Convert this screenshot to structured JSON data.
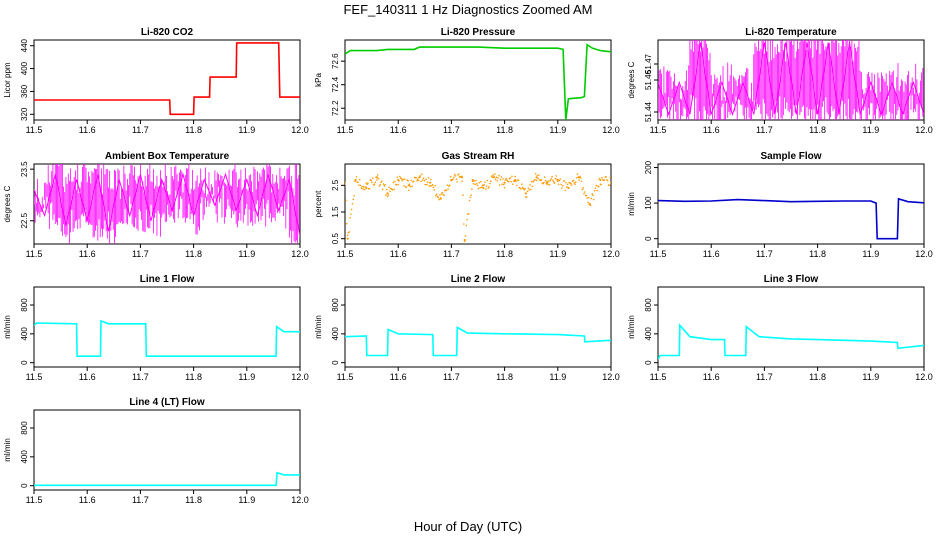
{
  "figure": {
    "title": "FEF_140311  1 Hz Diagnostics Zoomed AM",
    "xlabel": "Hour of Day (UTC)"
  },
  "chart_data": [
    {
      "type": "line",
      "title": "Li-820 CO2",
      "ylabel": "Licor ppm",
      "color": "#ff0000",
      "xlim": [
        11.5,
        12.0
      ],
      "ylim": [
        310,
        450
      ],
      "xticks": [
        "11.5",
        "11.6",
        "11.7",
        "11.8",
        "11.9",
        "12.0"
      ],
      "yticks": [
        "320",
        "360",
        "400",
        "440"
      ],
      "series": [
        {
          "x": [
            11.5,
            11.52,
            11.755,
            11.756,
            11.8,
            11.801,
            11.83,
            11.831,
            11.88,
            11.881,
            11.96,
            11.962,
            12.0
          ],
          "y": [
            345,
            345,
            345,
            320,
            320,
            350,
            350,
            385,
            385,
            445,
            445,
            350,
            350
          ]
        }
      ]
    },
    {
      "type": "line",
      "title": "Li-820 Pressure",
      "ylabel": "kPa",
      "color": "#00cc00",
      "xlim": [
        11.5,
        12.0
      ],
      "ylim": [
        72.1,
        72.78
      ],
      "xticks": [
        "11.5",
        "11.6",
        "11.7",
        "11.8",
        "11.9",
        "12.0"
      ],
      "yticks": [
        "72.2",
        "72.4",
        "72.6"
      ],
      "series": [
        {
          "x": [
            11.5,
            11.51,
            11.56,
            11.58,
            11.63,
            11.64,
            11.75,
            11.8,
            11.9,
            11.91,
            11.915,
            11.92,
            11.945,
            11.95,
            11.955,
            11.965,
            11.98,
            12.0
          ],
          "y": [
            72.66,
            72.69,
            72.69,
            72.7,
            72.7,
            72.72,
            72.72,
            72.71,
            72.71,
            72.7,
            72.1,
            72.28,
            72.29,
            72.3,
            72.74,
            72.71,
            72.69,
            72.68
          ]
        }
      ]
    },
    {
      "type": "line",
      "title": "Li-820 Temperature",
      "ylabel": "degrees C",
      "color": "#ff00ff",
      "xlim": [
        11.5,
        12.0
      ],
      "ylim": [
        51.435,
        51.485
      ],
      "xticks": [
        "11.5",
        "11.6",
        "11.7",
        "11.8",
        "11.9",
        "12.0"
      ],
      "yticks": [
        "51.44",
        "51.46",
        "51.47"
      ],
      "series": [
        {
          "x": [
            11.5,
            11.52,
            11.54,
            11.56,
            11.58,
            11.6,
            11.62,
            11.64,
            11.66,
            11.68,
            11.7,
            11.72,
            11.74,
            11.76,
            11.78,
            11.8,
            11.82,
            11.84,
            11.86,
            11.88,
            11.9,
            11.92,
            11.94,
            11.96,
            11.98,
            12.0
          ],
          "y": [
            51.4585,
            51.4385,
            51.4585,
            51.4385,
            51.4835,
            51.4385,
            51.4585,
            51.4385,
            51.4585,
            51.4385,
            51.4835,
            51.4385,
            51.4835,
            51.4385,
            51.4835,
            51.4385,
            51.4835,
            51.4385,
            51.4835,
            51.4385,
            51.4585,
            51.4385,
            51.4585,
            51.4385,
            51.4585,
            51.4385
          ]
        }
      ]
    },
    {
      "type": "line",
      "title": "Ambient Box Temperature",
      "ylabel": "degrees C",
      "color": "#ff00ff",
      "xlim": [
        11.5,
        12.0
      ],
      "ylim": [
        22.05,
        23.6
      ],
      "xticks": [
        "11.5",
        "11.6",
        "11.7",
        "11.8",
        "11.9",
        "12.0"
      ],
      "yticks": [
        "22.5",
        "23.5"
      ],
      "series": [
        {
          "x": [
            11.5,
            11.52,
            11.54,
            11.56,
            11.58,
            11.6,
            11.62,
            11.64,
            11.66,
            11.68,
            11.7,
            11.72,
            11.74,
            11.76,
            11.78,
            11.8,
            11.82,
            11.84,
            11.86,
            11.88,
            11.9,
            11.92,
            11.94,
            11.96,
            11.98,
            12.0
          ],
          "y": [
            23.1,
            22.6,
            23.4,
            22.4,
            23.3,
            22.5,
            23.4,
            22.3,
            23.3,
            22.6,
            23.4,
            22.5,
            23.3,
            22.7,
            23.4,
            22.6,
            23.3,
            22.8,
            23.4,
            22.7,
            23.3,
            22.6,
            23.4,
            22.7,
            23.3,
            22.2
          ]
        }
      ]
    },
    {
      "type": "scatter",
      "title": "Gas Stream RH",
      "ylabel": "percent",
      "color": "#ff9900",
      "xlim": [
        11.5,
        12.0
      ],
      "ylim": [
        0.3,
        3.3
      ],
      "xticks": [
        "11.5",
        "11.6",
        "11.7",
        "11.8",
        "11.9",
        "12.0"
      ],
      "yticks": [
        "0.5",
        "1.5",
        "2.5"
      ],
      "series": [
        {
          "x": [
            11.5,
            11.505,
            11.52,
            11.54,
            11.56,
            11.58,
            11.6,
            11.62,
            11.64,
            11.66,
            11.68,
            11.7,
            11.72,
            11.725,
            11.74,
            11.76,
            11.78,
            11.8,
            11.82,
            11.84,
            11.86,
            11.88,
            11.9,
            11.92,
            11.94,
            11.96,
            11.98,
            12.0
          ],
          "y": [
            2.6,
            0.5,
            2.7,
            2.4,
            2.8,
            2.2,
            2.7,
            2.5,
            2.8,
            2.6,
            2.0,
            2.7,
            2.8,
            0.45,
            2.7,
            2.4,
            2.8,
            2.6,
            2.7,
            2.2,
            2.8,
            2.6,
            2.7,
            2.4,
            2.8,
            1.8,
            2.7,
            2.6
          ]
        }
      ]
    },
    {
      "type": "line",
      "title": "Sample Flow",
      "ylabel": "ml/min",
      "color": "#0000cc",
      "xlim": [
        11.5,
        12.0
      ],
      "ylim": [
        -15,
        210
      ],
      "xticks": [
        "11.5",
        "11.6",
        "11.7",
        "11.8",
        "11.9",
        "12.0"
      ],
      "yticks": [
        "0",
        "100",
        "200"
      ],
      "series": [
        {
          "x": [
            11.5,
            11.55,
            11.6,
            11.65,
            11.7,
            11.75,
            11.8,
            11.85,
            11.9,
            11.91,
            11.912,
            11.95,
            11.952,
            11.97,
            12.0
          ],
          "y": [
            107,
            105,
            106,
            110,
            107,
            104,
            105,
            106,
            106,
            100,
            0,
            0,
            112,
            104,
            101
          ]
        }
      ]
    },
    {
      "type": "line",
      "title": "Line 1 Flow",
      "ylabel": "ml/min",
      "color": "#00ffff",
      "xlim": [
        11.5,
        12.0
      ],
      "ylim": [
        -60,
        1050
      ],
      "xticks": [
        "11.5",
        "11.6",
        "11.7",
        "11.8",
        "11.9",
        "12.0"
      ],
      "yticks": [
        "0",
        "400",
        "800"
      ],
      "series": [
        {
          "x": [
            11.5,
            11.505,
            11.58,
            11.581,
            11.625,
            11.626,
            11.64,
            11.71,
            11.711,
            11.955,
            11.956,
            11.97,
            12.0
          ],
          "y": [
            520,
            550,
            540,
            90,
            90,
            580,
            540,
            540,
            90,
            90,
            500,
            430,
            430
          ]
        }
      ]
    },
    {
      "type": "line",
      "title": "Line 2 Flow",
      "ylabel": "ml/min",
      "color": "#00ffff",
      "xlim": [
        11.5,
        12.0
      ],
      "ylim": [
        -60,
        1050
      ],
      "xticks": [
        "11.5",
        "11.6",
        "11.7",
        "11.8",
        "11.9",
        "12.0"
      ],
      "yticks": [
        "0",
        "400",
        "800"
      ],
      "series": [
        {
          "x": [
            11.5,
            11.54,
            11.541,
            11.58,
            11.581,
            11.6,
            11.665,
            11.666,
            11.71,
            11.711,
            11.73,
            11.8,
            11.9,
            11.95,
            11.951,
            12.0
          ],
          "y": [
            360,
            370,
            100,
            100,
            460,
            400,
            390,
            100,
            100,
            490,
            410,
            400,
            390,
            370,
            290,
            310
          ]
        }
      ]
    },
    {
      "type": "line",
      "title": "Line 3 Flow",
      "ylabel": "ml/min",
      "color": "#00ffff",
      "xlim": [
        11.5,
        12.0
      ],
      "ylim": [
        -60,
        1050
      ],
      "xticks": [
        "11.5",
        "11.6",
        "11.7",
        "11.8",
        "11.9",
        "12.0"
      ],
      "yticks": [
        "0",
        "400",
        "800"
      ],
      "series": [
        {
          "x": [
            11.5,
            11.504,
            11.54,
            11.541,
            11.56,
            11.6,
            11.625,
            11.626,
            11.665,
            11.666,
            11.69,
            11.75,
            11.8,
            11.85,
            11.9,
            11.95,
            11.951,
            12.0
          ],
          "y": [
            50,
            100,
            100,
            520,
            360,
            320,
            320,
            100,
            100,
            500,
            360,
            330,
            320,
            310,
            300,
            280,
            200,
            240
          ]
        }
      ]
    },
    {
      "type": "line",
      "title": "Line 4 (LT) Flow",
      "ylabel": "ml/min",
      "color": "#00ffff",
      "xlim": [
        11.5,
        12.0
      ],
      "ylim": [
        -60,
        1050
      ],
      "xticks": [
        "11.5",
        "11.6",
        "11.7",
        "11.8",
        "11.9",
        "12.0"
      ],
      "yticks": [
        "0",
        "400",
        "800"
      ],
      "series": [
        {
          "x": [
            11.5,
            11.6,
            11.7,
            11.8,
            11.9,
            11.955,
            11.957,
            11.97,
            12.0
          ],
          "y": [
            5,
            5,
            5,
            5,
            5,
            5,
            180,
            150,
            150
          ]
        }
      ]
    }
  ]
}
